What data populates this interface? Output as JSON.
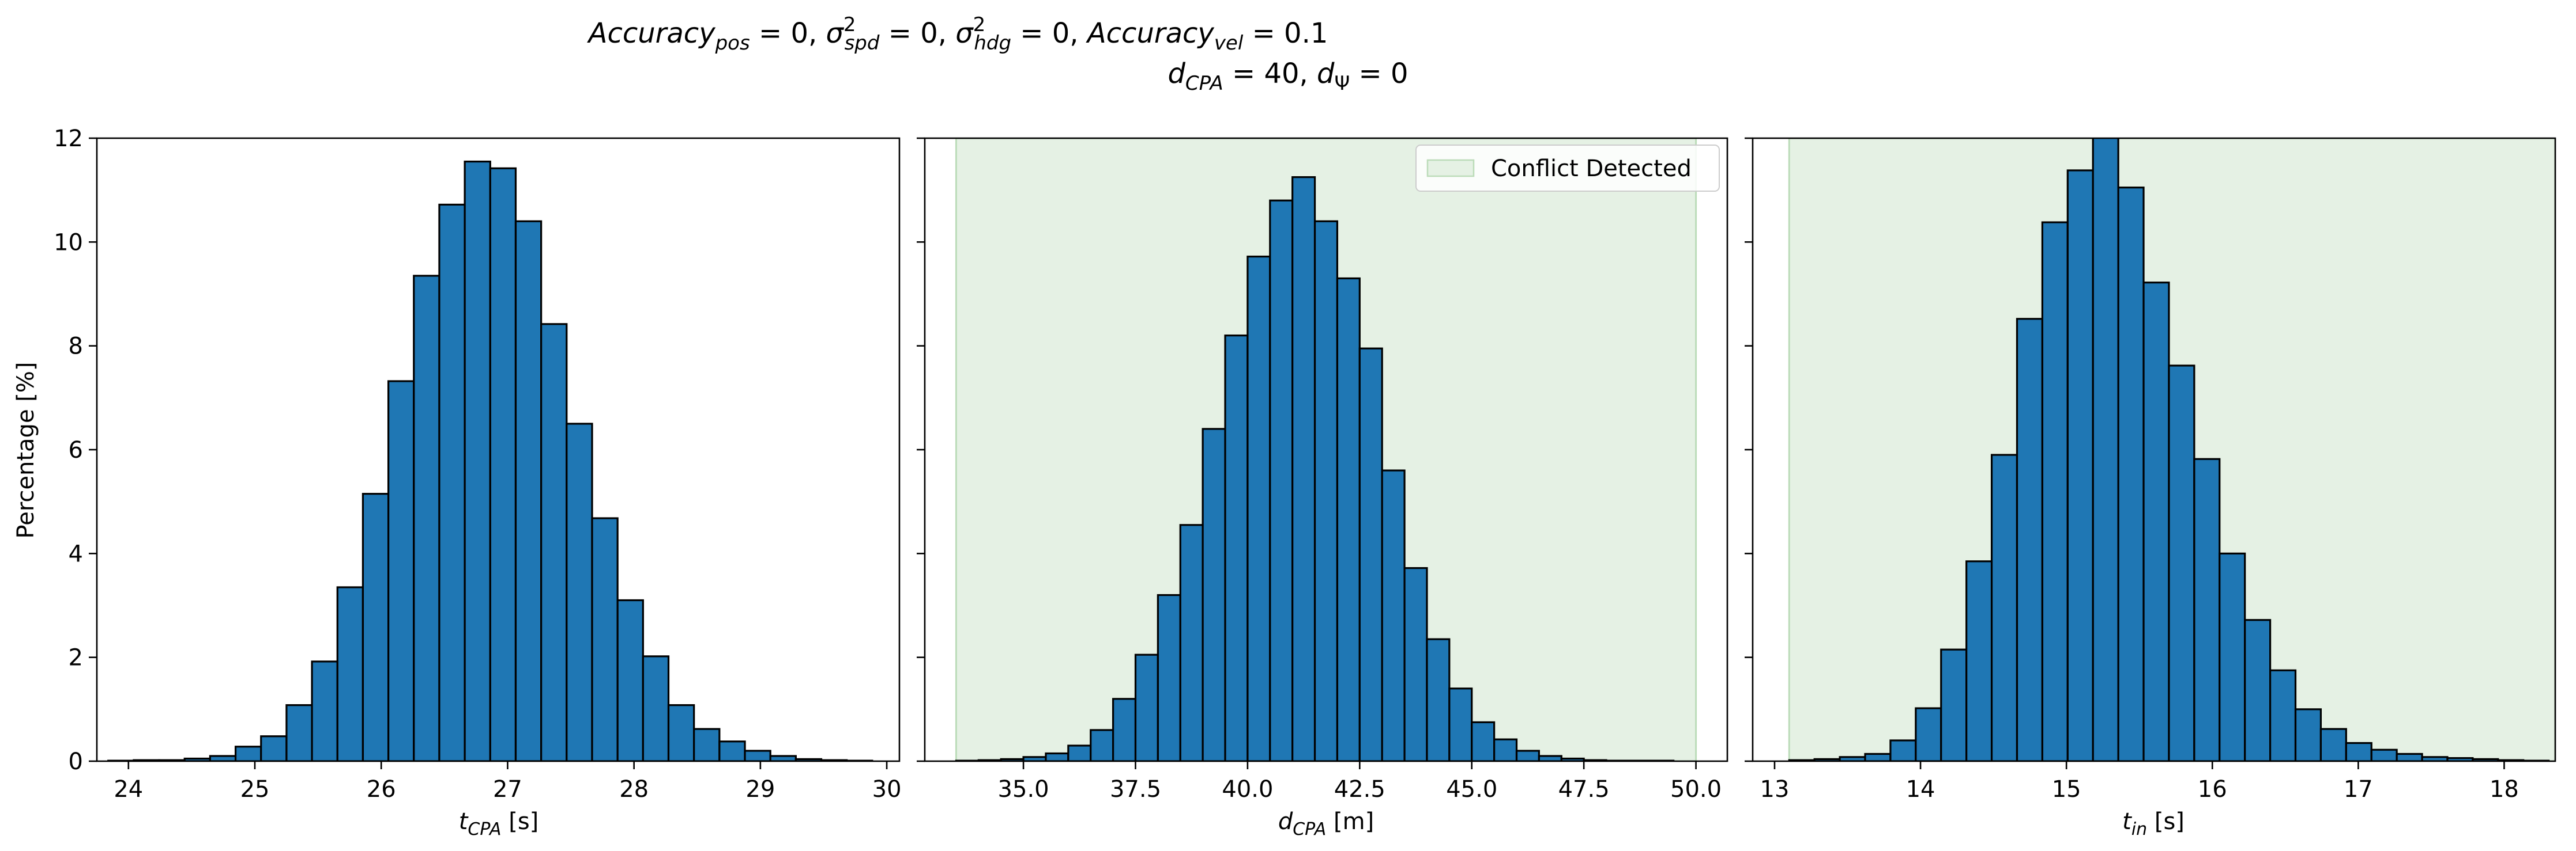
{
  "figure": {
    "title_line1": "Accuracy_pos = 0, σ²_spd = 0, σ²_hdg = 0, Accuracy_vel = 0.1",
    "title_line2": "d_CPA = 40, d_Ψ = 0"
  },
  "colors": {
    "bar_fill": "#1f77b4",
    "bar_edge": "#000000",
    "region_fill": "#e5f1e4",
    "region_edge": "#bcdcb9"
  },
  "chart_data": [
    {
      "type": "bar",
      "xlabel": "t_CPA [s]",
      "ylabel": "Percentage [%]",
      "xlim": [
        23.75,
        30.1
      ],
      "ylim": [
        0,
        12
      ],
      "xticks": [
        24,
        25,
        26,
        27,
        28,
        29,
        30
      ],
      "xtick_labels": [
        "24",
        "25",
        "26",
        "27",
        "28",
        "29",
        "30"
      ],
      "yticks": [
        0,
        2,
        4,
        6,
        8,
        10,
        12
      ],
      "ytick_labels": [
        "0",
        "2",
        "4",
        "6",
        "8",
        "10",
        "12"
      ],
      "bin_start": 23.84,
      "bin_width": 0.2015,
      "values": [
        0.01,
        0.02,
        0.02,
        0.05,
        0.1,
        0.28,
        0.48,
        1.08,
        1.92,
        3.35,
        5.15,
        7.32,
        9.35,
        10.72,
        11.55,
        11.42,
        10.4,
        8.42,
        6.5,
        4.68,
        3.1,
        2.02,
        1.08,
        0.62,
        0.38,
        0.2,
        0.1,
        0.04,
        0.02,
        0.01
      ]
    },
    {
      "type": "bar",
      "xlabel": "d_CPA [m]",
      "ylabel": "",
      "xlim": [
        32.8,
        50.7
      ],
      "ylim": [
        0,
        12
      ],
      "xticks": [
        35,
        37.5,
        40,
        42.5,
        45,
        47.5,
        50
      ],
      "xtick_labels": [
        "35.0",
        "37.5",
        "40.0",
        "42.5",
        "45.0",
        "47.5",
        "50.0"
      ],
      "yticks": [
        0,
        2,
        4,
        6,
        8,
        10,
        12
      ],
      "ytick_labels": [
        "0",
        "2",
        "4",
        "6",
        "8",
        "10",
        "12"
      ],
      "bin_start": 33.5,
      "bin_width": 0.5,
      "values": [
        0.01,
        0.02,
        0.04,
        0.08,
        0.15,
        0.3,
        0.6,
        1.2,
        2.05,
        3.2,
        4.55,
        6.4,
        8.2,
        9.72,
        10.8,
        11.25,
        10.4,
        9.3,
        7.95,
        5.6,
        3.72,
        2.35,
        1.4,
        0.75,
        0.42,
        0.2,
        0.1,
        0.05,
        0.02,
        0.01,
        0.01,
        0.01
      ],
      "shaded_region": {
        "x_range": [
          33.5,
          50
        ],
        "label": "Conflict Detected"
      },
      "legend": {
        "entries": [
          "Conflict Detected"
        ],
        "loc": "upper right"
      }
    },
    {
      "type": "bar",
      "xlabel": "t_in [s]",
      "ylabel": "",
      "xlim": [
        12.85,
        18.35
      ],
      "ylim": [
        0,
        12
      ],
      "xticks": [
        13,
        14,
        15,
        16,
        17,
        18
      ],
      "xtick_labels": [
        "13",
        "14",
        "15",
        "16",
        "17",
        "18"
      ],
      "yticks": [
        0,
        2,
        4,
        6,
        8,
        10,
        12
      ],
      "ytick_labels": [
        "0",
        "2",
        "4",
        "6",
        "8",
        "10",
        "12"
      ],
      "bin_start": 13.1,
      "bin_width": 0.1735,
      "values": [
        0.02,
        0.04,
        0.08,
        0.14,
        0.4,
        1.02,
        2.15,
        3.85,
        5.9,
        8.52,
        10.38,
        11.38,
        12.05,
        11.05,
        9.22,
        7.62,
        5.82,
        4.0,
        2.72,
        1.75,
        1.0,
        0.62,
        0.35,
        0.22,
        0.14,
        0.08,
        0.06,
        0.04,
        0.02,
        0.01
      ],
      "shaded_region": {
        "x_range": [
          13.1,
          18.35
        ],
        "label": "Conflict Detected"
      }
    }
  ]
}
